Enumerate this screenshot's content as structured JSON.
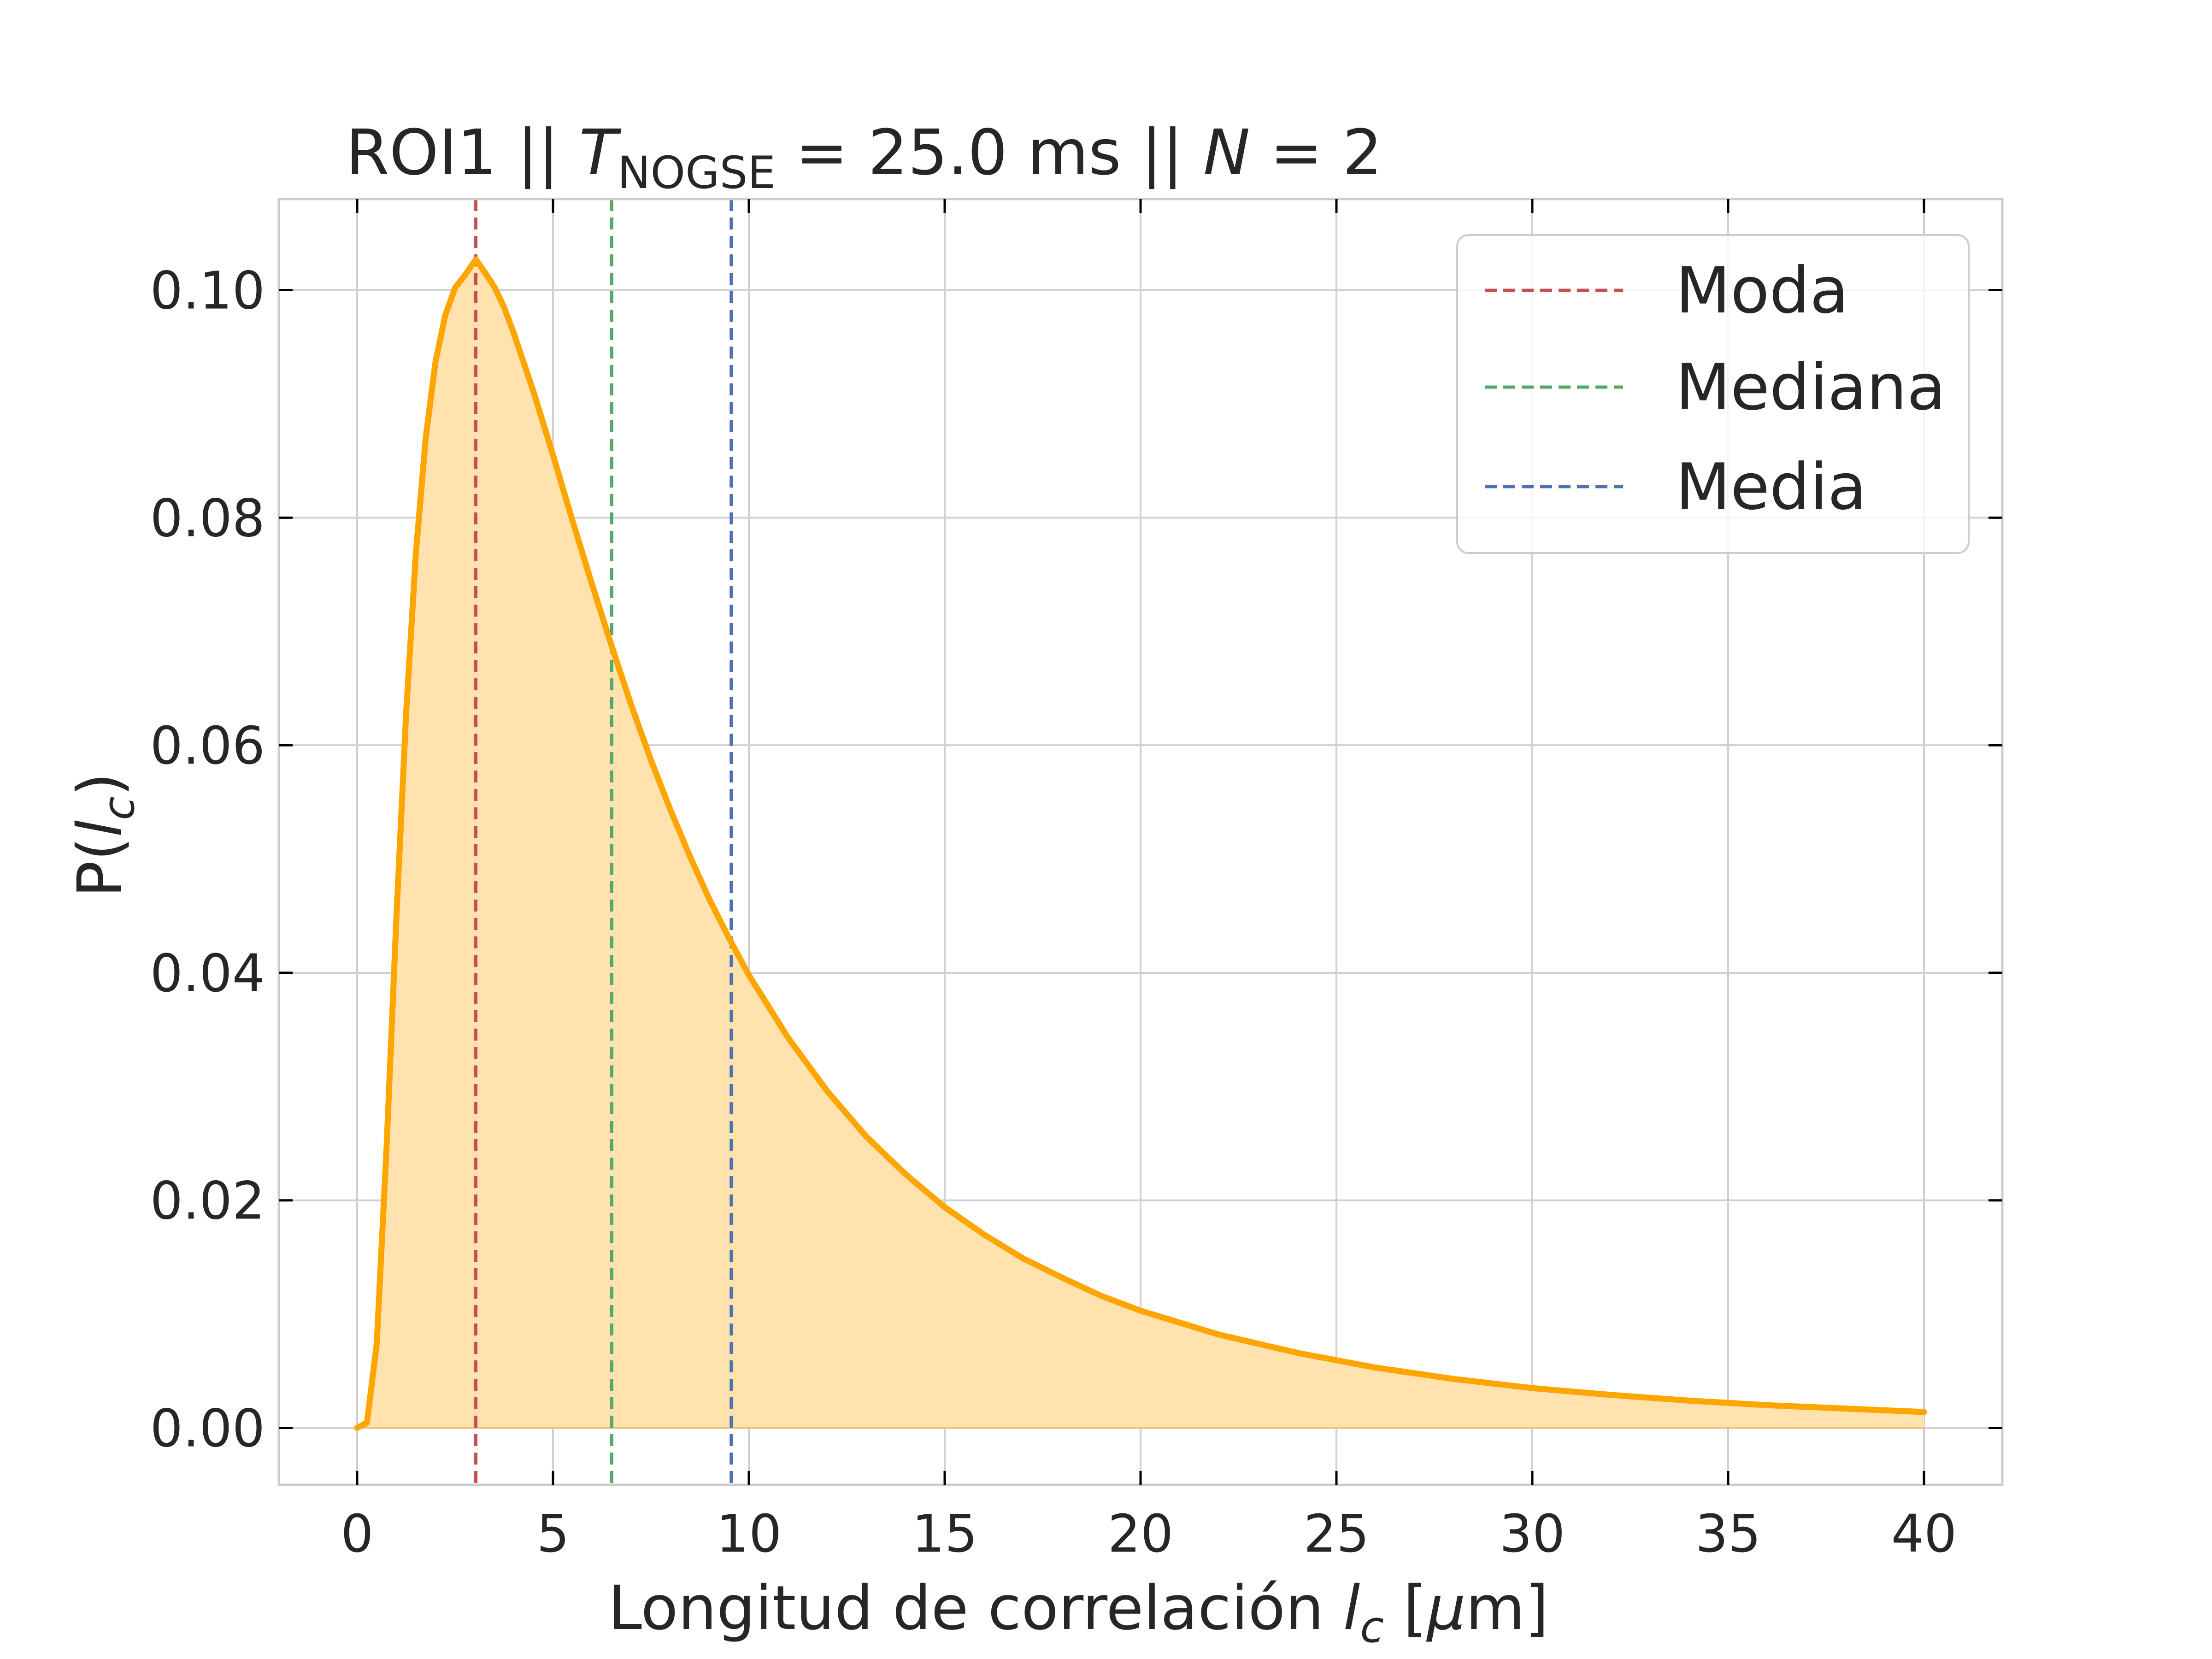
{
  "chart_data": {
    "type": "area",
    "title_parts": {
      "prefix": "ROI1 || ",
      "t_symbol": "T",
      "t_subscript": "NOGSE",
      "middle": " = 25.0 ms  ||  ",
      "n_symbol": "N",
      "suffix": " = 2"
    },
    "xlabel_parts": {
      "text": "Longitud de correlación ",
      "var": "l",
      "sub": "c",
      "unit_open": " [",
      "unit_mu": "μ",
      "unit_rest": "m]"
    },
    "ylabel_parts": {
      "prefix": "P(",
      "var": "l",
      "sub": "c",
      "suffix": ")"
    },
    "xlim": [
      -2,
      42
    ],
    "ylim": [
      -0.005,
      0.108
    ],
    "xticks": [
      0,
      5,
      10,
      15,
      20,
      25,
      30,
      35,
      40
    ],
    "xtick_labels": [
      "0",
      "5",
      "10",
      "15",
      "20",
      "25",
      "30",
      "35",
      "40"
    ],
    "yticks": [
      0.0,
      0.02,
      0.04,
      0.06,
      0.08,
      0.1
    ],
    "ytick_labels": [
      "0.00",
      "0.02",
      "0.04",
      "0.06",
      "0.08",
      "0.10"
    ],
    "grid": true,
    "legend_position": "top-right",
    "distribution_points": {
      "x": [
        0,
        0.25,
        0.5,
        0.75,
        1.0,
        1.25,
        1.5,
        1.75,
        2.0,
        2.25,
        2.5,
        2.75,
        3.03,
        3.25,
        3.5,
        3.75,
        4.0,
        4.5,
        5.0,
        5.5,
        6.0,
        6.5,
        7.0,
        7.5,
        8.0,
        8.5,
        9.0,
        9.5,
        10.0,
        11.0,
        12.0,
        13.0,
        14.0,
        15.0,
        16.0,
        17.0,
        18.0,
        19.0,
        20.0,
        22.0,
        24.0,
        26.0,
        28.0,
        30.0,
        32.0,
        34.0,
        36.0,
        38.0,
        40.0
      ],
      "y": [
        0.0,
        0.00046,
        0.0074,
        0.0246,
        0.0447,
        0.0628,
        0.0769,
        0.087,
        0.0937,
        0.0978,
        0.1002,
        0.1013,
        0.1027,
        0.1016,
        0.1003,
        0.0985,
        0.0962,
        0.0911,
        0.0855,
        0.0797,
        0.0741,
        0.0687,
        0.0635,
        0.0587,
        0.0543,
        0.0502,
        0.0464,
        0.043,
        0.0398,
        0.0343,
        0.0296,
        0.0256,
        0.0223,
        0.0194,
        0.017,
        0.0149,
        0.0132,
        0.0116,
        0.0103,
        0.0082,
        0.0066,
        0.0053,
        0.0043,
        0.0035,
        0.0029,
        0.0024,
        0.002,
        0.0017,
        0.0014
      ]
    },
    "series": [
      {
        "name": "Moda",
        "type": "vline",
        "x": 3.03,
        "color": "#c44e52"
      },
      {
        "name": "Mediana",
        "type": "vline",
        "x": 6.5,
        "color": "#55a868"
      },
      {
        "name": "Media",
        "type": "vline",
        "x": 9.55,
        "color": "#4c72b0"
      }
    ],
    "curve_color": "#ffa500",
    "fill_color": "#ffe2ad",
    "grid_color": "#d0d0d0",
    "spine_color": "#cccccc",
    "text_color": "#262626"
  }
}
